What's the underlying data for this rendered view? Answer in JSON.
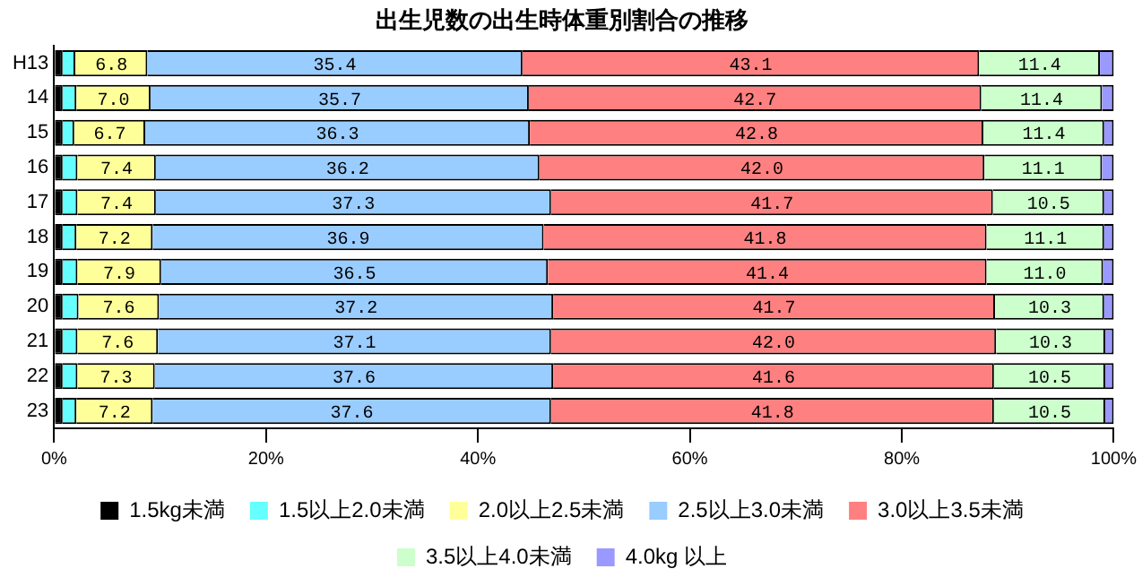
{
  "chart_data": {
    "type": "bar",
    "orientation": "horizontal",
    "stacked": true,
    "title": "出生児数の出生時体重別割合の推移",
    "categories": [
      "H13",
      "14",
      "15",
      "16",
      "17",
      "18",
      "19",
      "20",
      "21",
      "22",
      "23"
    ],
    "series": [
      {
        "name": "1.5kg未満",
        "color": "#000000",
        "values": [
          0.8,
          0.8,
          0.8,
          0.8,
          0.8,
          0.8,
          0.8,
          0.8,
          0.8,
          0.8,
          0.8
        ]
      },
      {
        "name": "1.5以上2.0未満",
        "color": "#66ffff",
        "values": [
          1.2,
          1.3,
          1.1,
          1.4,
          1.4,
          1.3,
          1.4,
          1.5,
          1.4,
          1.4,
          1.3
        ]
      },
      {
        "name": "2.0以上2.5未満",
        "color": "#ffff99",
        "values": [
          6.8,
          7.0,
          6.7,
          7.4,
          7.4,
          7.2,
          7.9,
          7.6,
          7.6,
          7.3,
          7.2
        ],
        "value_labels": [
          "6.8",
          "7.0",
          "6.7",
          "7.4",
          "7.4",
          "7.2",
          "7.9",
          "7.6",
          "7.6",
          "7.3",
          "7.2"
        ]
      },
      {
        "name": "2.5以上3.0未満",
        "color": "#99ccff",
        "values": [
          35.4,
          35.7,
          36.3,
          36.2,
          37.3,
          36.9,
          36.5,
          37.2,
          37.1,
          37.6,
          37.6
        ],
        "value_labels": [
          "35.4",
          "35.7",
          "36.3",
          "36.2",
          "37.3",
          "36.9",
          "36.5",
          "37.2",
          "37.1",
          "37.6",
          "37.6"
        ]
      },
      {
        "name": "3.0以上3.5未満",
        "color": "#ff8080",
        "values": [
          43.1,
          42.7,
          42.8,
          42.0,
          41.7,
          41.8,
          41.4,
          41.7,
          42.0,
          41.6,
          41.8
        ],
        "value_labels": [
          "43.1",
          "42.7",
          "42.8",
          "42.0",
          "41.7",
          "41.8",
          "41.4",
          "41.7",
          "42.0",
          "41.6",
          "41.8"
        ]
      },
      {
        "name": "3.5以上4.0未満",
        "color": "#ccffcc",
        "values": [
          11.4,
          11.4,
          11.4,
          11.1,
          10.5,
          11.1,
          11.0,
          10.3,
          10.3,
          10.5,
          10.5
        ],
        "value_labels": [
          "11.4",
          "11.4",
          "11.4",
          "11.1",
          "10.5",
          "11.1",
          "11.0",
          "10.3",
          "10.3",
          "10.5",
          "10.5"
        ]
      },
      {
        "name": "4.0kg 以上",
        "color": "#9999ff",
        "values": [
          1.3,
          1.1,
          0.9,
          1.1,
          0.9,
          0.9,
          1.0,
          0.9,
          0.8,
          0.8,
          0.8
        ]
      }
    ],
    "xlim": [
      0,
      100
    ],
    "xticks": [
      {
        "value": 0,
        "label": "0%"
      },
      {
        "value": 20,
        "label": "20%"
      },
      {
        "value": 40,
        "label": "40%"
      },
      {
        "value": 60,
        "label": "60%"
      },
      {
        "value": 80,
        "label": "80%"
      },
      {
        "value": 100,
        "label": "100%"
      }
    ],
    "grid": false,
    "legend": "bottom"
  }
}
